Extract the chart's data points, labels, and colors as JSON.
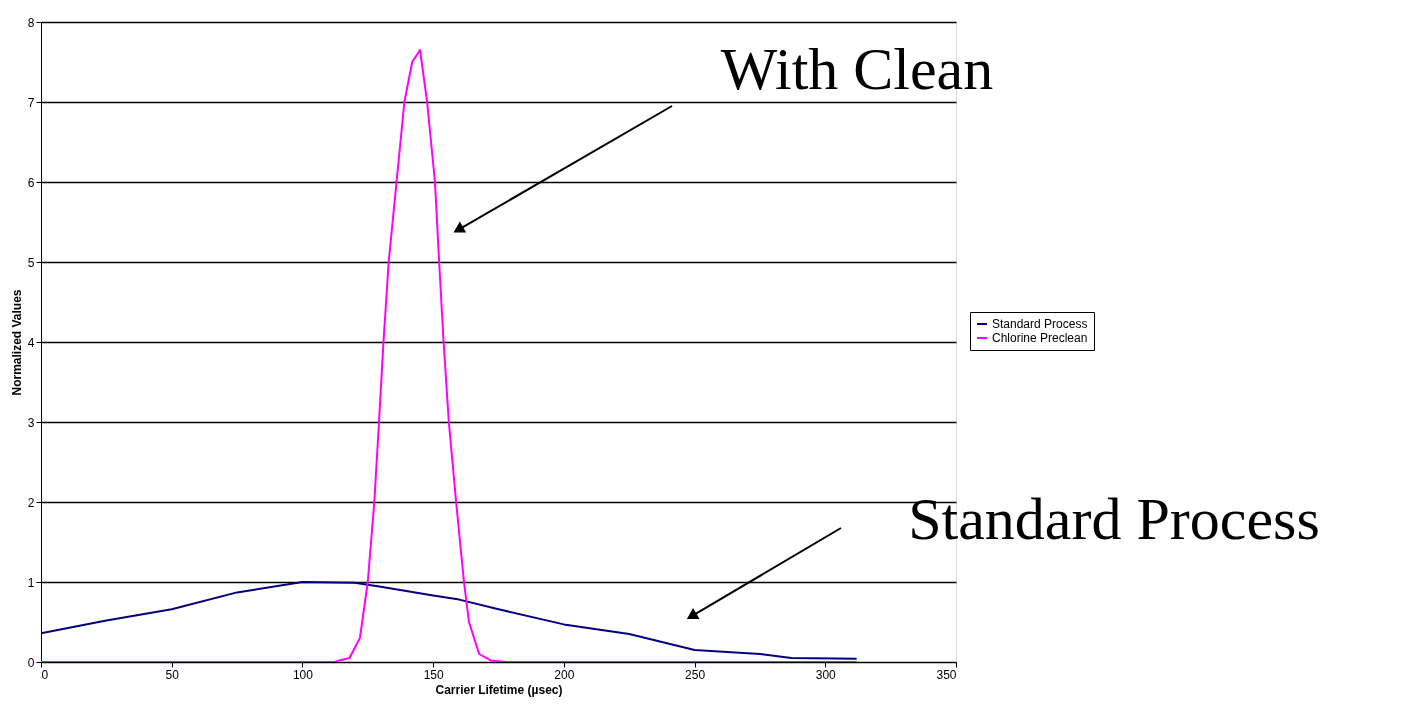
{
  "chart_data": {
    "type": "line",
    "xlabel": "Carrier Lifetime (µsec)",
    "ylabel": "Normalized Values",
    "xlim": [
      0,
      350
    ],
    "xticks": [
      0,
      50,
      100,
      150,
      200,
      250,
      300,
      350
    ],
    "ylim": [
      0,
      8
    ],
    "yticks": [
      0,
      1,
      2,
      3,
      4,
      5,
      6,
      7,
      8
    ],
    "grid": "y",
    "legend": "right",
    "marker": "none",
    "line_style": "solid",
    "series": [
      {
        "name": "Standard Process",
        "color": "#000080",
        "x": [
          0,
          25,
          50,
          75,
          100,
          120,
          130,
          150,
          160,
          175,
          200,
          225,
          250,
          275,
          287,
          312
        ],
        "values": [
          0.36,
          0.52,
          0.66,
          0.87,
          1.0,
          0.99,
          0.94,
          0.83,
          0.78,
          0.66,
          0.47,
          0.35,
          0.15,
          0.1,
          0.05,
          0.04
        ]
      },
      {
        "name": "Chlorine Preclean",
        "color": "#ff00ff",
        "x": [
          0,
          112,
          118,
          122,
          125,
          127.5,
          129.3,
          131,
          133,
          136,
          139,
          142,
          145,
          147.7,
          150.7,
          152.3,
          154,
          156,
          158.8,
          161.8,
          163.7,
          167.6,
          172,
          178,
          312
        ],
        "values": [
          0,
          0,
          0.05,
          0.3,
          1,
          2,
          3,
          4,
          5,
          6,
          7,
          7.5,
          7.65,
          7,
          6,
          5,
          4,
          3,
          2,
          1,
          0.5,
          0.1,
          0.02,
          0,
          0
        ]
      }
    ],
    "annotations": [
      "With Clean",
      "Standard Process"
    ]
  }
}
